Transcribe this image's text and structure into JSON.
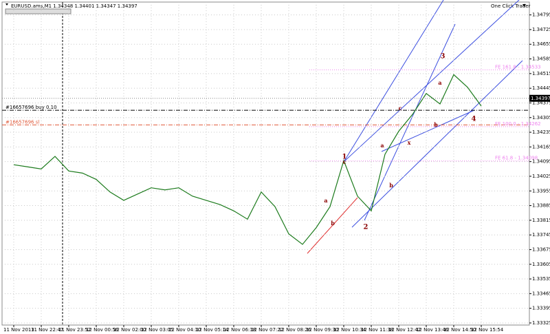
{
  "chart_data": {
    "type": "line",
    "title": "EURUSD.ams,M1  1.34348 1.34401 1.34347 1.34397",
    "panel": "One Click Trader",
    "categories": [
      "11 Nov 2013",
      null,
      "11 Nov 22:47",
      null,
      "11 Nov 23:52",
      null,
      "12 Nov 00:56",
      null,
      "12 Nov 02:00",
      null,
      "12 Nov 03:05",
      null,
      "12 Nov 04:10",
      null,
      "12 Nov 05:14",
      null,
      "12 Nov 06:18",
      null,
      "12 Nov 07:22",
      null,
      "12 Nov 08:26",
      null,
      "12 Nov 09:30",
      null,
      "12 Nov 10:34",
      null,
      "12 Nov 11:38",
      null,
      "12 Nov 12:42",
      null,
      "12 Nov 13:46",
      null,
      "12 Nov 14:50",
      null,
      "12 Nov 15:54"
    ],
    "values": [
      1.3408,
      1.3407,
      1.3406,
      1.3412,
      1.3405,
      1.3404,
      1.3401,
      1.3395,
      1.3391,
      1.3394,
      1.3397,
      1.3396,
      1.3397,
      1.3393,
      1.3391,
      1.3389,
      1.3386,
      1.3382,
      1.3395,
      1.3388,
      1.3375,
      1.337,
      1.3378,
      1.3388,
      1.341,
      1.3393,
      1.3386,
      1.3413,
      1.3424,
      1.3432,
      1.3442,
      1.3437,
      1.3451,
      1.3445,
      1.3436
    ],
    "color": "#1b7a1b",
    "ylim": [
      1.33315,
      1.34853
    ],
    "yticks": [
      1.33325,
      1.33395,
      1.33465,
      1.33535,
      1.33605,
      1.33675,
      1.33745,
      1.33815,
      1.33885,
      1.33955,
      1.34025,
      1.34095,
      1.34165,
      1.34235,
      1.34305,
      1.34375,
      1.34445,
      1.34515,
      1.34585,
      1.34655,
      1.34725,
      1.34795
    ],
    "grid": true,
    "last_price": 1.34397,
    "levels": [
      {
        "value": 1.3434,
        "label": "#16657696 buy 0.10",
        "color": "#000000"
      },
      {
        "value": 1.3427,
        "label": "#16657696 sl",
        "color": "#e05a3a"
      },
      {
        "value": 1.34533,
        "label": "FE 161.8 - 1.34533",
        "color": "#ee82ee"
      },
      {
        "value": 1.34262,
        "label": "FE 100.0 - 1.34262",
        "color": "#ee82ee"
      },
      {
        "value": 1.34098,
        "label": "FE 61.8 - 1.34098",
        "color": "#ee82ee"
      }
    ],
    "wave_labels": [
      "1",
      "2",
      "3",
      "4",
      "a",
      "b",
      "c",
      "a",
      "b",
      "c",
      "x",
      "a",
      "b"
    ]
  }
}
